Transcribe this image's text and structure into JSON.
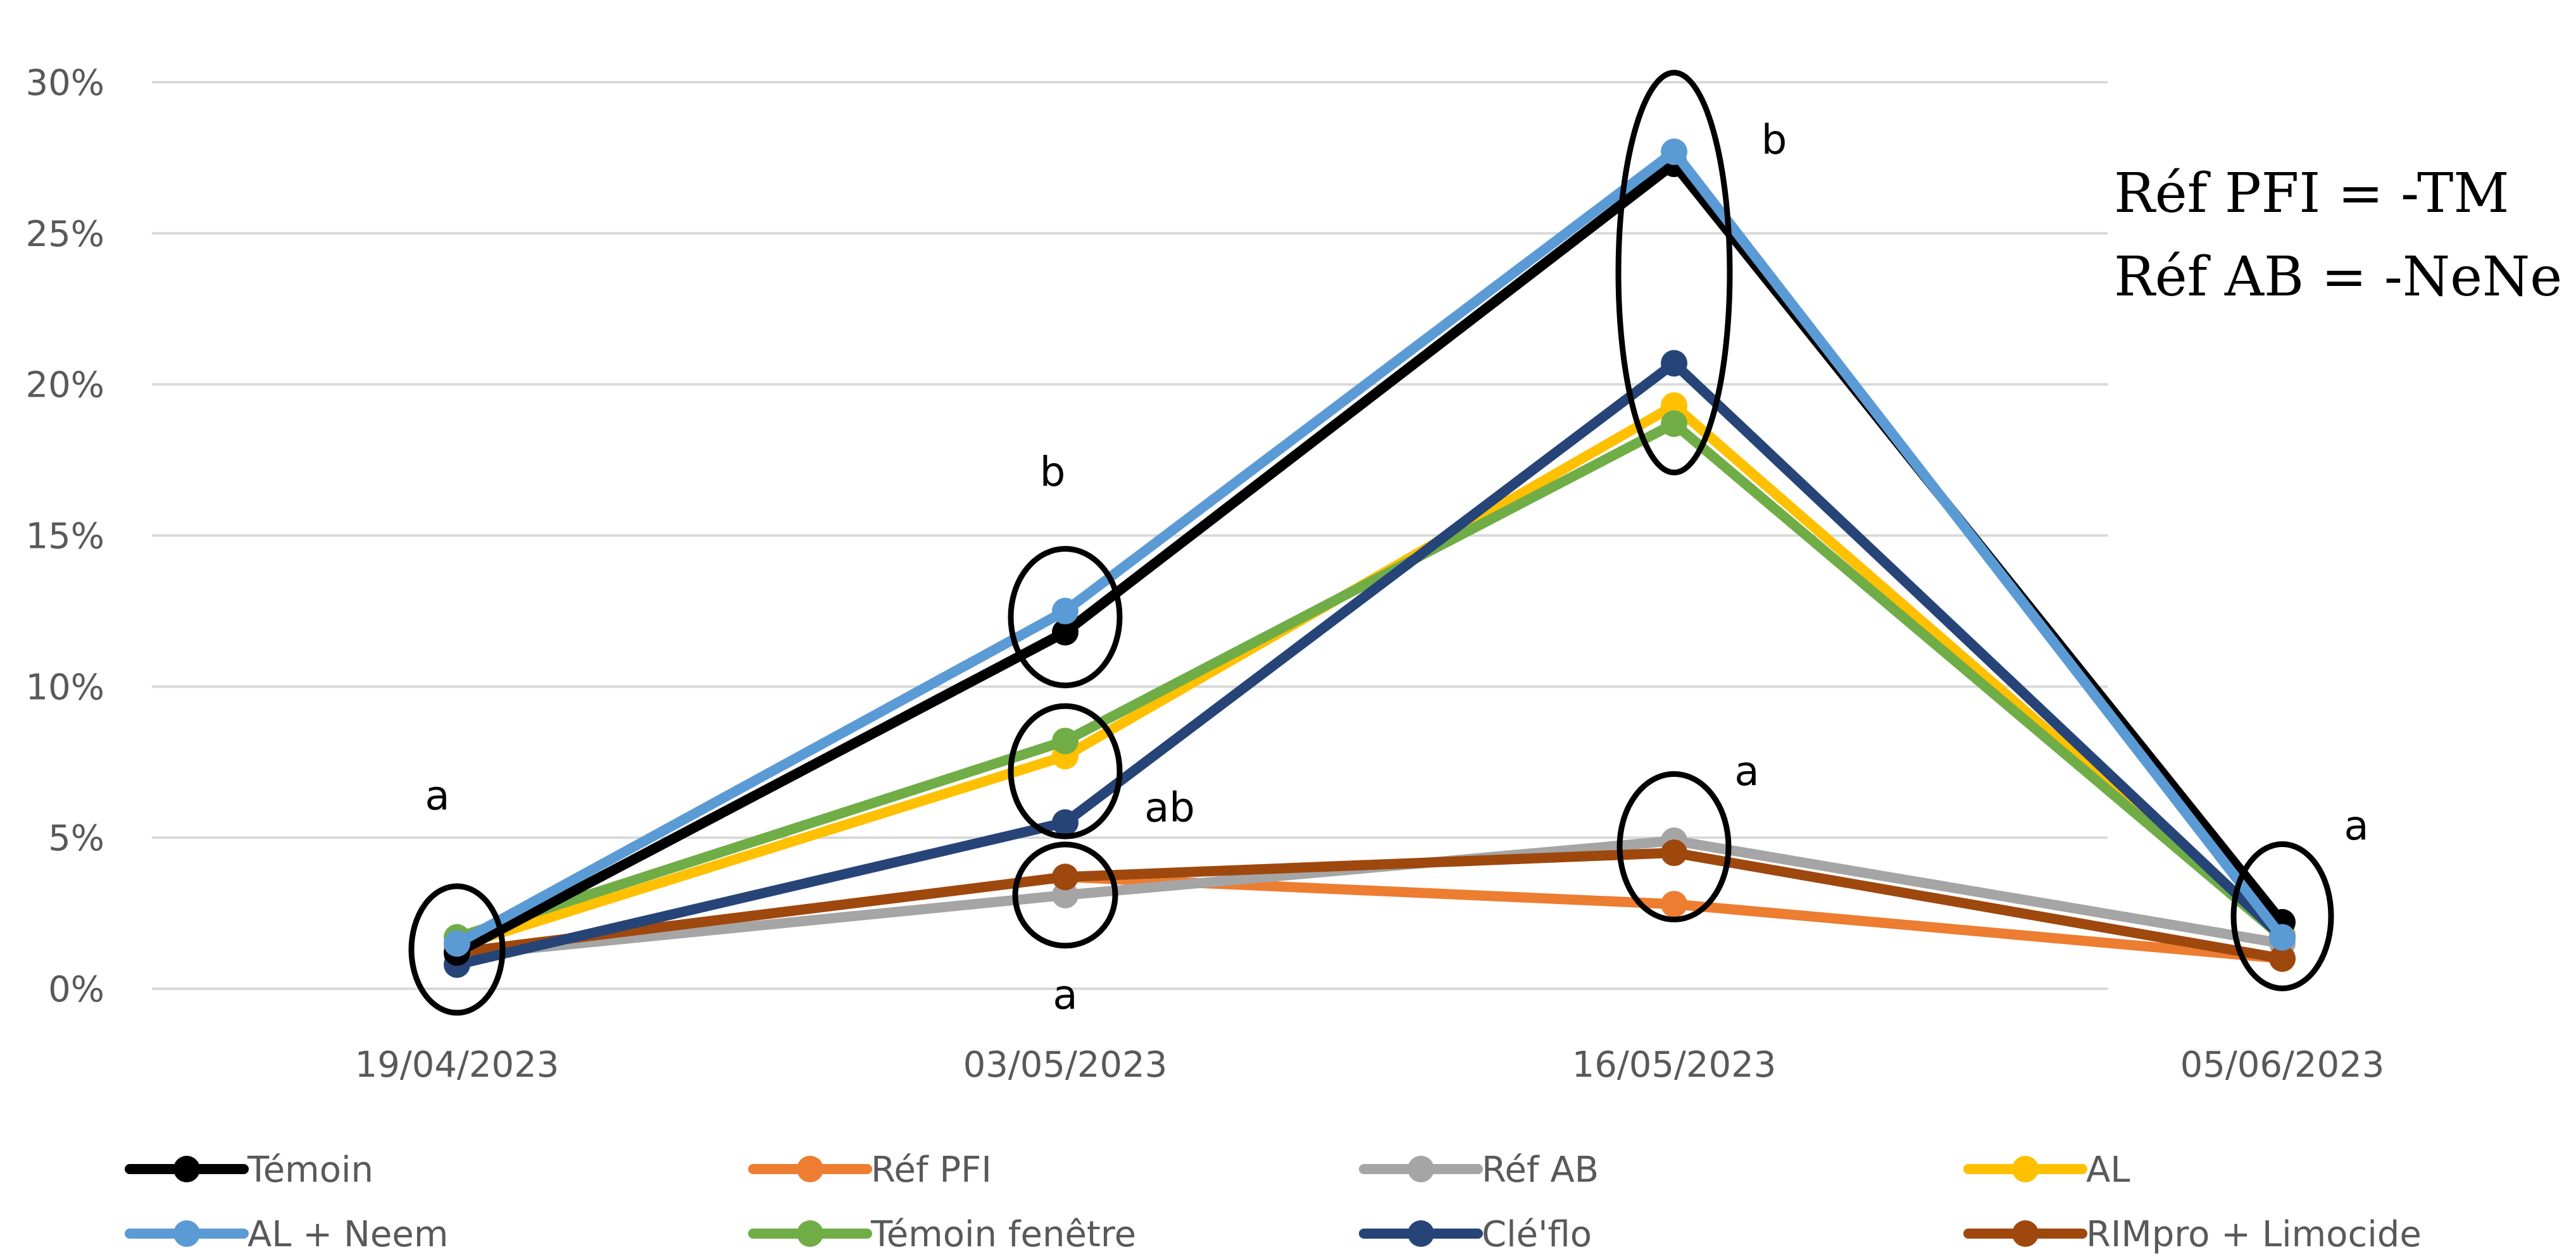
{
  "chart_data": {
    "type": "line",
    "title": "",
    "xlabel": "",
    "ylabel": "",
    "x": [
      "19/04/2023",
      "03/05/2023",
      "16/05/2023",
      "05/06/2023"
    ],
    "y_ticks": [
      "0%",
      "5%",
      "10%",
      "15%",
      "20%",
      "25%",
      "30%"
    ],
    "ylim": [
      0,
      0.3
    ],
    "grid": "horizontal",
    "legend_position": "bottom",
    "series": [
      {
        "name": "Témoin",
        "color": "#000000",
        "values": [
          0.012,
          0.118,
          0.273,
          0.022
        ]
      },
      {
        "name": "Réf PFI",
        "color": "#ED7D31",
        "values": [
          0.012,
          0.037,
          0.028,
          0.01
        ]
      },
      {
        "name": "Réf AB",
        "color": "#A5A5A5",
        "values": [
          0.011,
          0.031,
          0.049,
          0.015
        ]
      },
      {
        "name": "AL",
        "color": "#FFC000",
        "values": [
          0.014,
          0.077,
          0.193,
          0.018
        ]
      },
      {
        "name": "AL + Neem",
        "color": "#5B9BD5",
        "values": [
          0.015,
          0.125,
          0.277,
          0.017
        ]
      },
      {
        "name": "Témoin fenêtre",
        "color": "#70AD47",
        "values": [
          0.017,
          0.082,
          0.187,
          0.017
        ]
      },
      {
        "name": "Clé'flo",
        "color": "#264478",
        "values": [
          0.008,
          0.055,
          0.207,
          0.017
        ]
      },
      {
        "name": "RIMpro + Limocide",
        "color": "#9E480E",
        "values": [
          0.012,
          0.037,
          0.045,
          0.01
        ]
      }
    ],
    "annotations": {
      "letters": [
        {
          "text": "a",
          "x": "19/04/2023",
          "value": 0.064
        },
        {
          "text": "b",
          "x": "03/05/2023",
          "value": 0.171
        },
        {
          "text": "ab",
          "x": "03/05/2023",
          "value": 0.06
        },
        {
          "text": "a",
          "x": "03/05/2023",
          "value": -0.002
        },
        {
          "text": "b",
          "x": "16/05/2023",
          "value": 0.281
        },
        {
          "text": "a",
          "x": "16/05/2023",
          "value": 0.072
        },
        {
          "text": "a",
          "x": "05/06/2023",
          "value": 0.054
        }
      ],
      "ellipses": [
        {
          "x": "19/04/2023",
          "center": 0.013
        },
        {
          "x": "03/05/2023",
          "center": 0.123
        },
        {
          "x": "03/05/2023",
          "center": 0.072
        },
        {
          "x": "03/05/2023",
          "center": 0.031
        },
        {
          "x": "16/05/2023",
          "center": 0.237
        },
        {
          "x": "16/05/2023",
          "center": 0.047
        },
        {
          "x": "05/06/2023",
          "center": 0.024
        }
      ],
      "notes": [
        "Réf PFI = -TM",
        "Réf AB = -NeNe"
      ]
    }
  }
}
